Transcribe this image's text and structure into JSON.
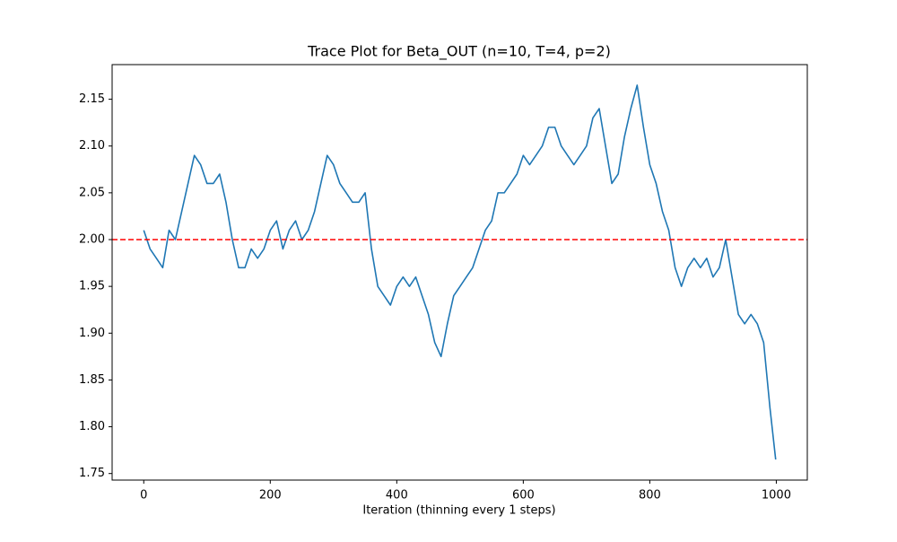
{
  "chart_data": {
    "type": "line",
    "title": "Trace Plot for Beta_OUT (n=10, T=4, p=2)",
    "x_label": "Iteration (thinning every 1 steps)",
    "x": [
      0,
      10,
      20,
      30,
      40,
      50,
      60,
      70,
      80,
      90,
      100,
      110,
      120,
      130,
      140,
      150,
      160,
      170,
      180,
      190,
      200,
      210,
      220,
      230,
      240,
      250,
      260,
      270,
      280,
      290,
      300,
      310,
      320,
      330,
      340,
      350,
      360,
      370,
      380,
      390,
      400,
      410,
      420,
      430,
      440,
      450,
      460,
      470,
      480,
      490,
      500,
      510,
      520,
      530,
      540,
      550,
      560,
      570,
      580,
      590,
      600,
      610,
      620,
      630,
      640,
      650,
      660,
      670,
      680,
      690,
      700,
      710,
      720,
      730,
      740,
      750,
      760,
      770,
      780,
      790,
      800,
      810,
      820,
      830,
      840,
      850,
      860,
      870,
      880,
      890,
      900,
      910,
      920,
      930,
      940,
      950,
      960,
      970,
      980,
      990,
      999
    ],
    "series": [
      {
        "name": "Beta_OUT",
        "color": "#1f77b4",
        "values": [
          2.01,
          1.99,
          1.98,
          1.97,
          2.01,
          2.0,
          2.03,
          2.06,
          2.09,
          2.08,
          2.06,
          2.06,
          2.07,
          2.04,
          2.0,
          1.97,
          1.97,
          1.99,
          1.98,
          1.99,
          2.01,
          2.02,
          1.99,
          2.01,
          2.02,
          2.0,
          2.01,
          2.03,
          2.06,
          2.09,
          2.08,
          2.06,
          2.05,
          2.04,
          2.04,
          2.05,
          1.99,
          1.95,
          1.94,
          1.93,
          1.95,
          1.96,
          1.95,
          1.96,
          1.94,
          1.92,
          1.89,
          1.875,
          1.91,
          1.94,
          1.95,
          1.96,
          1.97,
          1.99,
          2.01,
          2.02,
          2.05,
          2.05,
          2.06,
          2.07,
          2.09,
          2.08,
          2.09,
          2.1,
          2.12,
          2.12,
          2.1,
          2.09,
          2.08,
          2.09,
          2.1,
          2.13,
          2.14,
          2.1,
          2.06,
          2.07,
          2.11,
          2.14,
          2.165,
          2.12,
          2.08,
          2.06,
          2.03,
          2.01,
          1.97,
          1.95,
          1.97,
          1.98,
          1.97,
          1.98,
          1.96,
          1.97,
          2.0,
          1.96,
          1.92,
          1.91,
          1.92,
          1.91,
          1.89,
          1.82,
          1.765
        ]
      }
    ],
    "reference_line": {
      "value": 2.0,
      "color": "#ff0000"
    },
    "xlim": [
      -50,
      1049
    ],
    "xticks": [
      0,
      200,
      400,
      600,
      800,
      1000
    ],
    "ylim": [
      1.743,
      2.187
    ],
    "yticks": [
      1.75,
      {
        "value": 1.8,
        "label": "1.80"
      },
      1.85,
      {
        "value": 1.9,
        "label": "1.90"
      },
      1.95,
      {
        "value": 2.0,
        "label": "2.00"
      },
      2.05,
      {
        "value": 2.1,
        "label": "2.10"
      },
      2.15
    ],
    "grid": false
  }
}
